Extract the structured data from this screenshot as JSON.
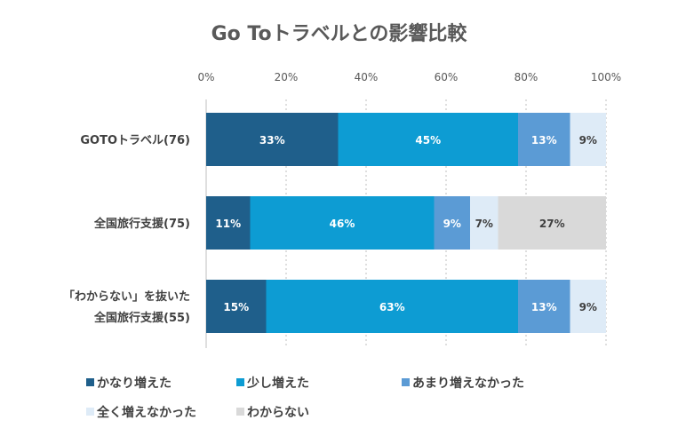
{
  "chart_data": {
    "type": "bar",
    "orientation": "horizontal",
    "stacked": true,
    "title": "Go Toトラベルとの影響比較",
    "categories": [
      [
        "GOTOトラベル(76)"
      ],
      [
        "全国旅行支援(75)"
      ],
      [
        "「わからない」を抜いた",
        "全国旅行支援(55)"
      ]
    ],
    "series": [
      {
        "name": "かなり増えた",
        "color": "#1F5F8B",
        "values": [
          33,
          11,
          15
        ]
      },
      {
        "name": "少し増えた",
        "color": "#0D9CD3",
        "values": [
          45,
          46,
          63
        ]
      },
      {
        "name": "あまり増えなかった",
        "color": "#5B9BD5",
        "values": [
          13,
          9,
          13
        ]
      },
      {
        "name": "全く増えなかった",
        "color": "#DEEBF7",
        "values": [
          9,
          7,
          9
        ]
      },
      {
        "name": "わからない",
        "color": "#D9D9D9",
        "values": [
          0,
          27,
          0
        ]
      }
    ],
    "xlim": [
      0,
      100
    ],
    "ticks": [
      "0%",
      "20%",
      "40%",
      "60%",
      "80%",
      "100%"
    ],
    "value_suffix": "%",
    "grid": "vertical dotted",
    "legend_position": "bottom"
  }
}
